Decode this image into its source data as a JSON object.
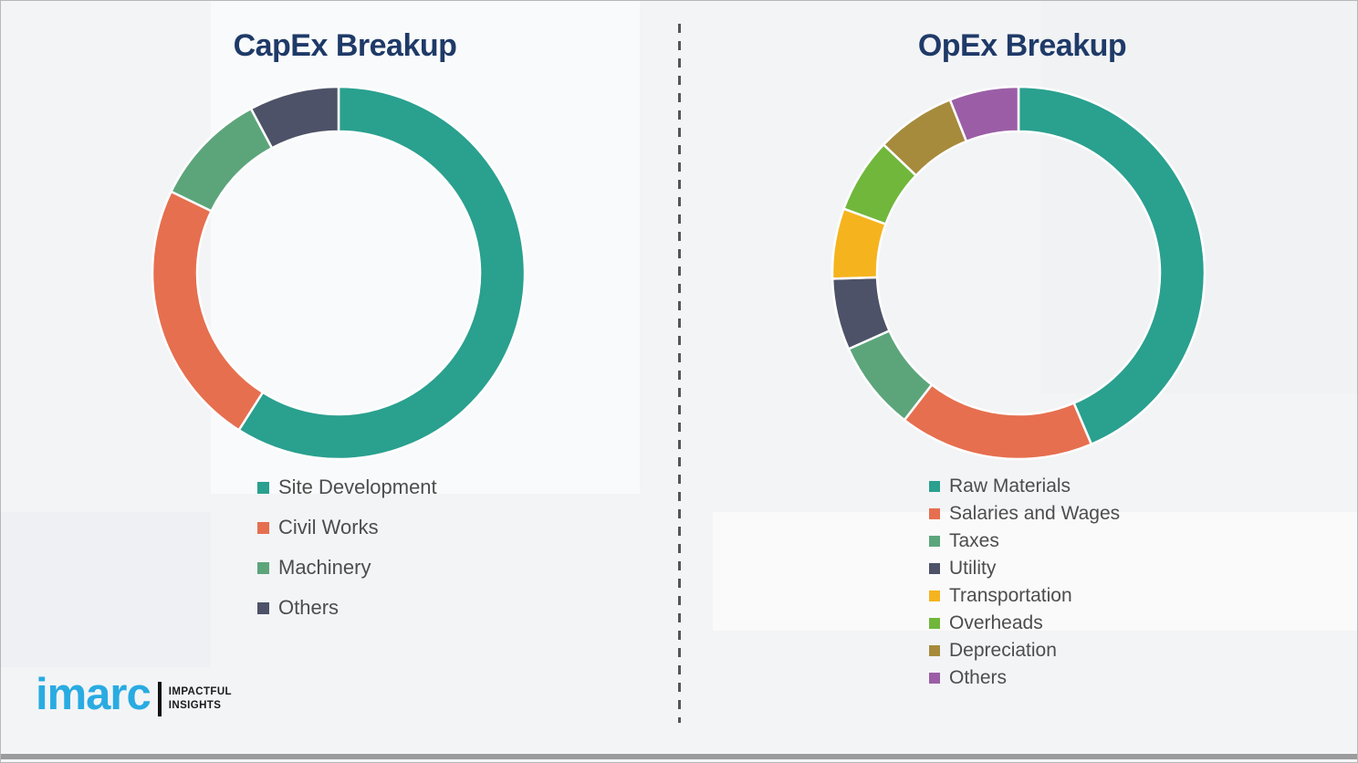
{
  "chart_data": [
    {
      "type": "pie",
      "subtype": "donut",
      "title": "CapEx Breakup",
      "labels": [
        "Site Development",
        "Civil Works",
        "Machinery",
        "Others"
      ],
      "values": [
        59.0,
        23.2,
        10.0,
        7.8
      ],
      "colors": [
        "#2aa08f",
        "#e66f4f",
        "#5ca57b",
        "#4d5268"
      ],
      "value_format": "share_percent_estimated_from_arc_angles",
      "hole": 0.76,
      "start_angle_deg": 0,
      "direction": "clockwise",
      "legend_position": "below-chart-left",
      "data_labels_shown": false
    },
    {
      "type": "pie",
      "subtype": "donut",
      "title": "OpEx Breakup",
      "labels": [
        "Raw Materials",
        "Salaries and Wages",
        "Taxes",
        "Utility",
        "Transportation",
        "Overheads",
        "Depreciation",
        "Others"
      ],
      "values": [
        43.6,
        16.9,
        7.8,
        6.2,
        6.1,
        6.5,
        6.9,
        6.0
      ],
      "colors": [
        "#2aa08f",
        "#e66f4f",
        "#5ca57b",
        "#4d5268",
        "#f5b41e",
        "#70b73c",
        "#a68b3d",
        "#9b5ea6"
      ],
      "value_format": "share_percent_estimated_from_arc_angles",
      "hole": 0.76,
      "start_angle_deg": 0,
      "direction": "clockwise",
      "legend_position": "below-chart-left",
      "data_labels_shown": false
    }
  ],
  "divider": {
    "style": "vertical-dashed",
    "color": "#555555"
  },
  "logo": {
    "brand": "imarc",
    "tagline_line1": "IMPACTFUL",
    "tagline_line2": "INSIGHTS",
    "brand_color": "#29abe2"
  },
  "colors": {
    "title_text": "#1f3a68",
    "legend_text": "#4d4d4d",
    "background": "#f3f4f6",
    "segment_gap": "#ffffff"
  }
}
